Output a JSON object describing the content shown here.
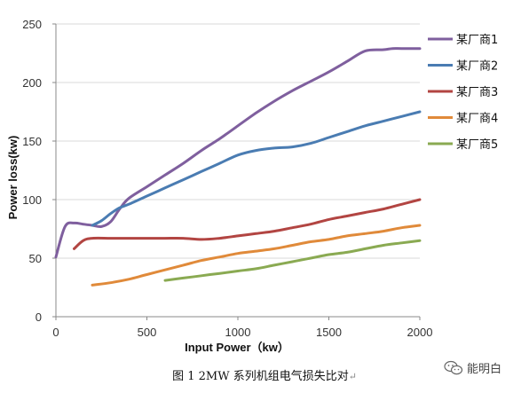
{
  "chart_data": {
    "type": "line",
    "xlabel": "Input Power（kw）",
    "ylabel": "Power loss(kw)",
    "xlim": [
      0,
      2000
    ],
    "ylim": [
      0,
      250
    ],
    "xticks": [
      0,
      500,
      1000,
      1500,
      2000
    ],
    "yticks": [
      0,
      50,
      100,
      150,
      200,
      250
    ],
    "grid": "horizontal",
    "legend": "right",
    "series": [
      {
        "name": "某厂商1",
        "color": "#7F5F9E",
        "x": [
          0,
          50,
          100,
          150,
          200,
          250,
          300,
          350,
          400,
          500,
          600,
          700,
          800,
          900,
          1000,
          1100,
          1200,
          1300,
          1400,
          1500,
          1600,
          1700,
          1800,
          1850,
          1900,
          2000
        ],
        "y": [
          51,
          77,
          80,
          79,
          78,
          77,
          81,
          92,
          101,
          111,
          121,
          131,
          142,
          152,
          163,
          174,
          184,
          193,
          201,
          209,
          218,
          227,
          228,
          229,
          229,
          229
        ]
      },
      {
        "name": "某厂商2",
        "color": "#4A7CB2",
        "x": [
          200,
          250,
          300,
          350,
          400,
          500,
          600,
          700,
          800,
          900,
          1000,
          1100,
          1200,
          1300,
          1400,
          1500,
          1600,
          1700,
          1800,
          1900,
          2000
        ],
        "y": [
          78,
          82,
          88,
          93,
          96,
          103,
          110,
          117,
          124,
          131,
          138,
          142,
          144,
          145,
          148,
          153,
          158,
          163,
          167,
          171,
          175
        ]
      },
      {
        "name": "某厂商3",
        "color": "#B24542",
        "x": [
          100,
          150,
          200,
          300,
          400,
          500,
          600,
          700,
          800,
          900,
          1000,
          1100,
          1200,
          1300,
          1400,
          1500,
          1600,
          1700,
          1800,
          1900,
          2000
        ],
        "y": [
          58,
          65,
          67,
          67,
          67,
          67,
          67,
          67,
          66,
          67,
          69,
          71,
          73,
          76,
          79,
          83,
          86,
          89,
          92,
          96,
          100
        ]
      },
      {
        "name": "某厂商4",
        "color": "#E08A3A",
        "x": [
          200,
          300,
          400,
          500,
          600,
          700,
          800,
          900,
          1000,
          1100,
          1200,
          1300,
          1400,
          1500,
          1600,
          1700,
          1800,
          1900,
          2000
        ],
        "y": [
          27,
          29,
          32,
          36,
          40,
          44,
          48,
          51,
          54,
          56,
          58,
          61,
          64,
          66,
          69,
          71,
          73,
          76,
          78
        ]
      },
      {
        "name": "某厂商5",
        "color": "#8AAA52",
        "x": [
          600,
          700,
          800,
          900,
          1000,
          1100,
          1200,
          1300,
          1400,
          1500,
          1600,
          1700,
          1800,
          1900,
          2000
        ],
        "y": [
          31,
          33,
          35,
          37,
          39,
          41,
          44,
          47,
          50,
          53,
          55,
          58,
          61,
          63,
          65
        ]
      }
    ]
  },
  "caption": "图 1 2MW 系列机组电气损失比对",
  "caption_mark": "↵",
  "watermark": "能明白",
  "watermark_icon": "wechat-icon"
}
